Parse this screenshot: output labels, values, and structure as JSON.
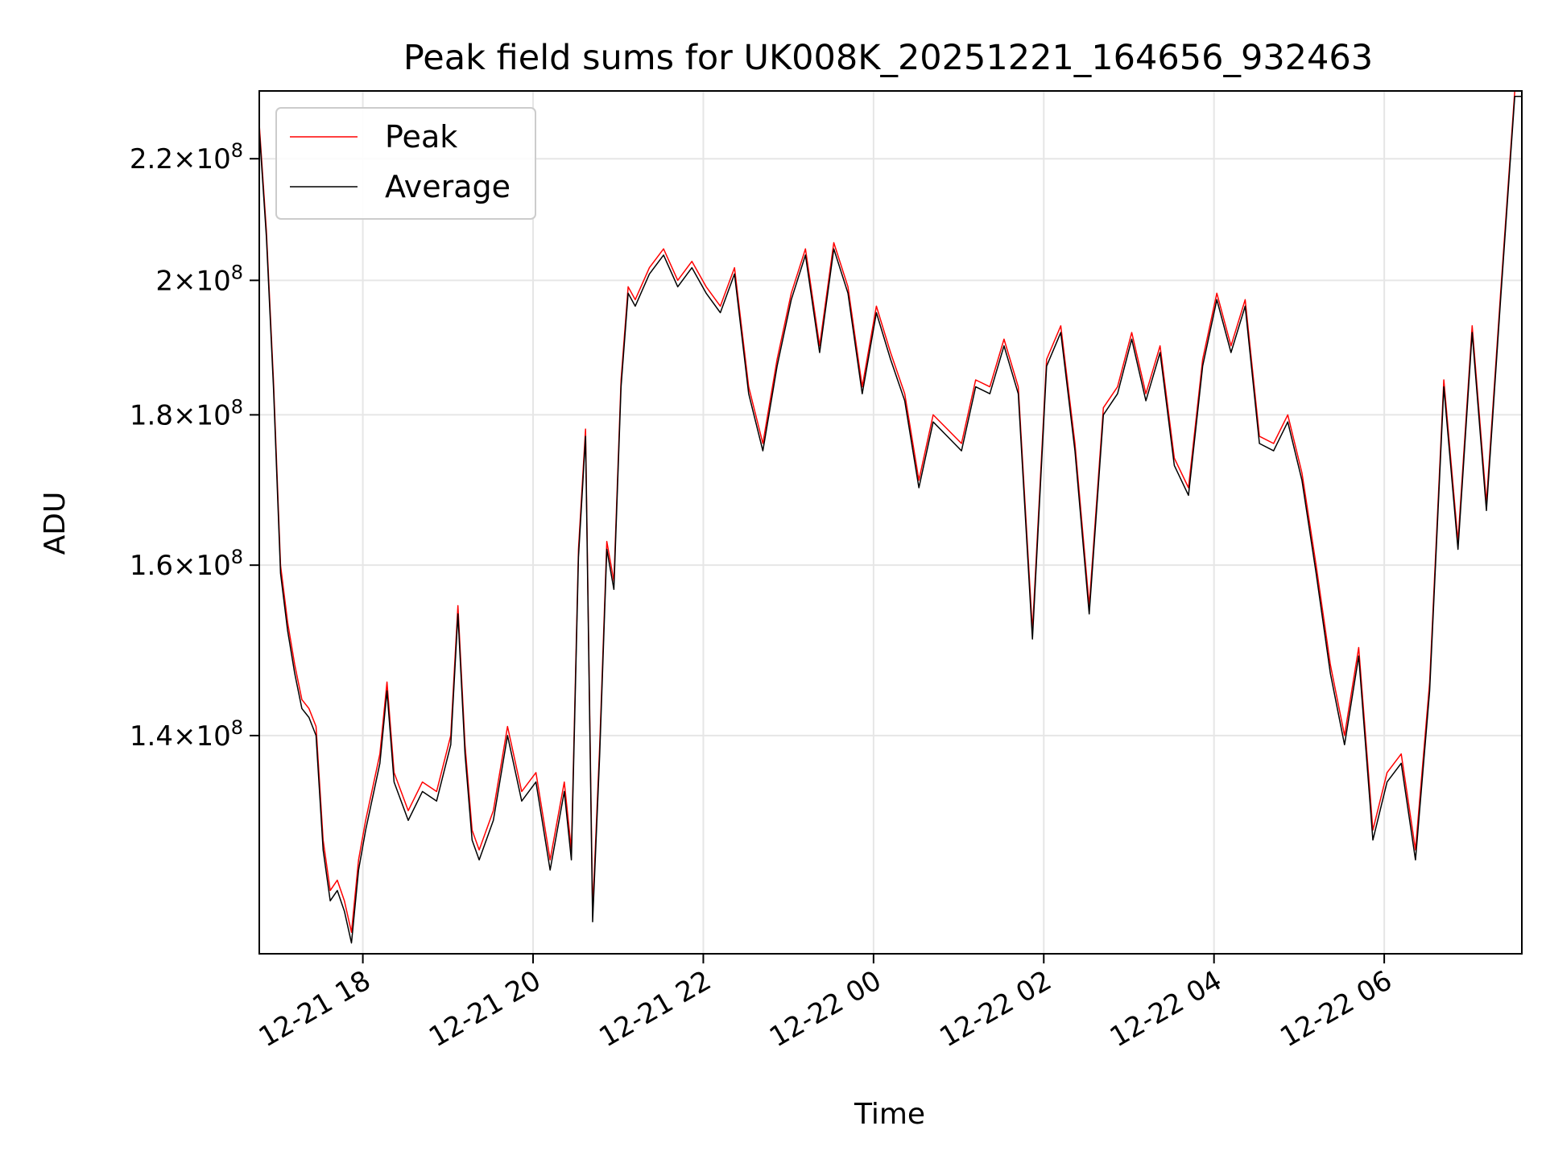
{
  "chart_data": {
    "type": "line",
    "title": "Peak field sums for UK008K_20251221_164656_932463",
    "xlabel": "Time",
    "ylabel": "ADU",
    "y_scale": "log",
    "grid": true,
    "legend_position": "top-left",
    "x_range": [
      "2025-12-21 16:47",
      "2025-12-22 07:37"
    ],
    "y_range": [
      118000000,
      232000000
    ],
    "x_ticks": [
      "12-21 18",
      "12-21 20",
      "12-21 22",
      "12-22 00",
      "12-22 02",
      "12-22 04",
      "12-22 06"
    ],
    "x_tick_times": [
      "2025-12-21 18:00",
      "2025-12-21 20:00",
      "2025-12-21 22:00",
      "2025-12-22 00:00",
      "2025-12-22 02:00",
      "2025-12-22 04:00",
      "2025-12-22 06:00"
    ],
    "y_ticks": [
      {
        "value": 140000000,
        "mantissa": "1.4",
        "exp": "8"
      },
      {
        "value": 160000000,
        "mantissa": "1.6",
        "exp": "8"
      },
      {
        "value": 180000000,
        "mantissa": "1.8",
        "exp": "8"
      },
      {
        "value": 200000000,
        "mantissa": "2",
        "exp": "8"
      },
      {
        "value": 220000000,
        "mantissa": "2.2",
        "exp": "8"
      }
    ],
    "series": [
      {
        "name": "Peak",
        "color": "#ff0000",
        "x": [
          "2025-12-21 16:47",
          "2025-12-21 16:52",
          "2025-12-21 16:57",
          "2025-12-21 17:02",
          "2025-12-21 17:07",
          "2025-12-21 17:12",
          "2025-12-21 17:17",
          "2025-12-21 17:22",
          "2025-12-21 17:27",
          "2025-12-21 17:32",
          "2025-12-21 17:37",
          "2025-12-21 17:42",
          "2025-12-21 17:47",
          "2025-12-21 17:52",
          "2025-12-21 17:57",
          "2025-12-21 18:02",
          "2025-12-21 18:12",
          "2025-12-21 18:17",
          "2025-12-21 18:22",
          "2025-12-21 18:32",
          "2025-12-21 18:42",
          "2025-12-21 18:52",
          "2025-12-21 19:02",
          "2025-12-21 19:07",
          "2025-12-21 19:12",
          "2025-12-21 19:17",
          "2025-12-21 19:22",
          "2025-12-21 19:32",
          "2025-12-21 19:42",
          "2025-12-21 19:52",
          "2025-12-21 20:02",
          "2025-12-21 20:12",
          "2025-12-21 20:22",
          "2025-12-21 20:27",
          "2025-12-21 20:32",
          "2025-12-21 20:37",
          "2025-12-21 20:42",
          "2025-12-21 20:47",
          "2025-12-21 20:52",
          "2025-12-21 20:57",
          "2025-12-21 21:02",
          "2025-12-21 21:07",
          "2025-12-21 21:12",
          "2025-12-21 21:22",
          "2025-12-21 21:32",
          "2025-12-21 21:42",
          "2025-12-21 21:52",
          "2025-12-21 22:02",
          "2025-12-21 22:12",
          "2025-12-21 22:22",
          "2025-12-21 22:32",
          "2025-12-21 22:42",
          "2025-12-21 22:52",
          "2025-12-21 23:02",
          "2025-12-21 23:12",
          "2025-12-21 23:22",
          "2025-12-21 23:32",
          "2025-12-21 23:42",
          "2025-12-21 23:52",
          "2025-12-22 00:02",
          "2025-12-22 00:12",
          "2025-12-22 00:22",
          "2025-12-22 00:32",
          "2025-12-22 00:42",
          "2025-12-22 00:52",
          "2025-12-22 01:02",
          "2025-12-22 01:12",
          "2025-12-22 01:22",
          "2025-12-22 01:32",
          "2025-12-22 01:42",
          "2025-12-22 01:52",
          "2025-12-22 02:02",
          "2025-12-22 02:12",
          "2025-12-22 02:22",
          "2025-12-22 02:32",
          "2025-12-22 02:42",
          "2025-12-22 02:52",
          "2025-12-22 03:02",
          "2025-12-22 03:12",
          "2025-12-22 03:22",
          "2025-12-22 03:32",
          "2025-12-22 03:42",
          "2025-12-22 03:52",
          "2025-12-22 04:02",
          "2025-12-22 04:12",
          "2025-12-22 04:22",
          "2025-12-22 04:32",
          "2025-12-22 04:42",
          "2025-12-22 04:52",
          "2025-12-22 05:02",
          "2025-12-22 05:12",
          "2025-12-22 05:22",
          "2025-12-22 05:32",
          "2025-12-22 05:42",
          "2025-12-22 05:52",
          "2025-12-22 06:02",
          "2025-12-22 06:12",
          "2025-12-22 06:22",
          "2025-12-22 06:32",
          "2025-12-22 06:42",
          "2025-12-22 06:52",
          "2025-12-22 07:02",
          "2025-12-22 07:12",
          "2025-12-22 07:22",
          "2025-12-22 07:32",
          "2025-12-22 07:37"
        ],
        "y": [
          226000000,
          208000000,
          185000000,
          160000000,
          153000000,
          148000000,
          144000000,
          143000000,
          141000000,
          129000000,
          124000000,
          125000000,
          123000000,
          120000000,
          127000000,
          131000000,
          138000000,
          146000000,
          136000000,
          132000000,
          135000000,
          134000000,
          140000000,
          155000000,
          139000000,
          130000000,
          128000000,
          132000000,
          141000000,
          134000000,
          136000000,
          127000000,
          135000000,
          128000000,
          162000000,
          178000000,
          122000000,
          139000000,
          163000000,
          158000000,
          185000000,
          199000000,
          197000000,
          202000000,
          205000000,
          200000000,
          203000000,
          199000000,
          196000000,
          202000000,
          184000000,
          176000000,
          188000000,
          198000000,
          205000000,
          190000000,
          206000000,
          199000000,
          184000000,
          196000000,
          189000000,
          183000000,
          171000000,
          180000000,
          178000000,
          176000000,
          185000000,
          184000000,
          191000000,
          184000000,
          152000000,
          188000000,
          193000000,
          176000000,
          155000000,
          181000000,
          184000000,
          192000000,
          183000000,
          190000000,
          174000000,
          170000000,
          188000000,
          198000000,
          190000000,
          197000000,
          177000000,
          176000000,
          180000000,
          172000000,
          160000000,
          148000000,
          140000000,
          150000000,
          130000000,
          136000000,
          138000000,
          128000000,
          146000000,
          185000000,
          163000000,
          193000000,
          168000000,
          198000000,
          232000000,
          232000000
        ]
      },
      {
        "name": "Average",
        "color": "#000000",
        "x": [
          "2025-12-21 16:47",
          "2025-12-21 16:52",
          "2025-12-21 16:57",
          "2025-12-21 17:02",
          "2025-12-21 17:07",
          "2025-12-21 17:12",
          "2025-12-21 17:17",
          "2025-12-21 17:22",
          "2025-12-21 17:27",
          "2025-12-21 17:32",
          "2025-12-21 17:37",
          "2025-12-21 17:42",
          "2025-12-21 17:47",
          "2025-12-21 17:52",
          "2025-12-21 17:57",
          "2025-12-21 18:02",
          "2025-12-21 18:12",
          "2025-12-21 18:17",
          "2025-12-21 18:22",
          "2025-12-21 18:32",
          "2025-12-21 18:42",
          "2025-12-21 18:52",
          "2025-12-21 19:02",
          "2025-12-21 19:07",
          "2025-12-21 19:12",
          "2025-12-21 19:17",
          "2025-12-21 19:22",
          "2025-12-21 19:32",
          "2025-12-21 19:42",
          "2025-12-21 19:52",
          "2025-12-21 20:02",
          "2025-12-21 20:12",
          "2025-12-21 20:22",
          "2025-12-21 20:27",
          "2025-12-21 20:32",
          "2025-12-21 20:37",
          "2025-12-21 20:42",
          "2025-12-21 20:47",
          "2025-12-21 20:52",
          "2025-12-21 20:57",
          "2025-12-21 21:02",
          "2025-12-21 21:07",
          "2025-12-21 21:12",
          "2025-12-21 21:22",
          "2025-12-21 21:32",
          "2025-12-21 21:42",
          "2025-12-21 21:52",
          "2025-12-21 22:02",
          "2025-12-21 22:12",
          "2025-12-21 22:22",
          "2025-12-21 22:32",
          "2025-12-21 22:42",
          "2025-12-21 22:52",
          "2025-12-21 23:02",
          "2025-12-21 23:12",
          "2025-12-21 23:22",
          "2025-12-21 23:32",
          "2025-12-21 23:42",
          "2025-12-21 23:52",
          "2025-12-22 00:02",
          "2025-12-22 00:12",
          "2025-12-22 00:22",
          "2025-12-22 00:32",
          "2025-12-22 00:42",
          "2025-12-22 00:52",
          "2025-12-22 01:02",
          "2025-12-22 01:12",
          "2025-12-22 01:22",
          "2025-12-22 01:32",
          "2025-12-22 01:42",
          "2025-12-22 01:52",
          "2025-12-22 02:02",
          "2025-12-22 02:12",
          "2025-12-22 02:22",
          "2025-12-22 02:32",
          "2025-12-22 02:42",
          "2025-12-22 02:52",
          "2025-12-22 03:02",
          "2025-12-22 03:12",
          "2025-12-22 03:22",
          "2025-12-22 03:32",
          "2025-12-22 03:42",
          "2025-12-22 03:52",
          "2025-12-22 04:02",
          "2025-12-22 04:12",
          "2025-12-22 04:22",
          "2025-12-22 04:32",
          "2025-12-22 04:42",
          "2025-12-22 04:52",
          "2025-12-22 05:02",
          "2025-12-22 05:12",
          "2025-12-22 05:22",
          "2025-12-22 05:32",
          "2025-12-22 05:42",
          "2025-12-22 05:52",
          "2025-12-22 06:02",
          "2025-12-22 06:12",
          "2025-12-22 06:22",
          "2025-12-22 06:32",
          "2025-12-22 06:42",
          "2025-12-22 06:52",
          "2025-12-22 07:02",
          "2025-12-22 07:12",
          "2025-12-22 07:22",
          "2025-12-22 07:32",
          "2025-12-22 07:37"
        ],
        "y": [
          225000000,
          207000000,
          184000000,
          159000000,
          152000000,
          147000000,
          143000000,
          142000000,
          140000000,
          128000000,
          123000000,
          124000000,
          122000000,
          119000000,
          126000000,
          130000000,
          137000000,
          145000000,
          135000000,
          131000000,
          134000000,
          133000000,
          139000000,
          154000000,
          138000000,
          129000000,
          127000000,
          131000000,
          140000000,
          133000000,
          135000000,
          126000000,
          134000000,
          127000000,
          161000000,
          177000000,
          121000000,
          138000000,
          162000000,
          157000000,
          184000000,
          198000000,
          196000000,
          201000000,
          204000000,
          199000000,
          202000000,
          198000000,
          195000000,
          201000000,
          183000000,
          175000000,
          187000000,
          197000000,
          204000000,
          189000000,
          205000000,
          198000000,
          183000000,
          195000000,
          188000000,
          182000000,
          170000000,
          179000000,
          177000000,
          175000000,
          184000000,
          183000000,
          190000000,
          183000000,
          151000000,
          187000000,
          192000000,
          175000000,
          154000000,
          180000000,
          183000000,
          191000000,
          182000000,
          189000000,
          173000000,
          169000000,
          187000000,
          197000000,
          189000000,
          196000000,
          176000000,
          175000000,
          179000000,
          171000000,
          159000000,
          147000000,
          139000000,
          149000000,
          129000000,
          135000000,
          137000000,
          127000000,
          145000000,
          184000000,
          162000000,
          192000000,
          167000000,
          197000000,
          231000000,
          231000000
        ]
      }
    ]
  }
}
